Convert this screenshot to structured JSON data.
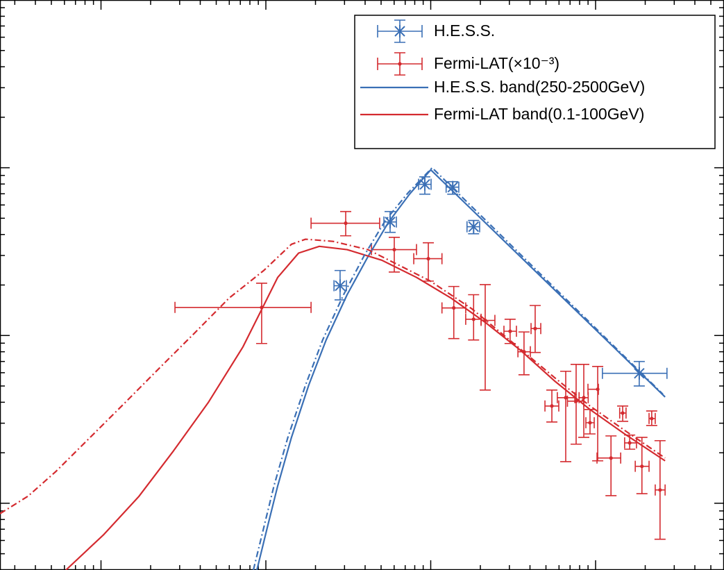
{
  "chart_data": {
    "type": "errorbar",
    "xscale": "log",
    "yscale": "log",
    "xlim": [
      0.0244,
      601
    ],
    "ylim": [
      0.004,
      10
    ],
    "xticks": [
      0.1,
      1,
      10,
      100
    ],
    "yticks": [
      0.01,
      0.1,
      1
    ],
    "legend": "upper right",
    "series": [
      {
        "name": "H.E.S.S.",
        "type": "errorbar",
        "color": "#3a6fb5",
        "marker": "x",
        "x": [
          2.82,
          5.67,
          9.21,
          13.6,
          18.2,
          184
        ],
        "y": [
          0.198,
          0.475,
          0.796,
          0.766,
          0.445,
          0.0595
        ],
        "x_low": [
          2.59,
          5.2,
          8.44,
          12.4,
          16.6,
          110
        ],
        "x_high": [
          3.08,
          6.19,
          10.05,
          14.8,
          19.8,
          271
        ],
        "y_low": [
          0.163,
          0.412,
          0.696,
          0.696,
          0.404,
          0.05
        ],
        "y_high": [
          0.244,
          0.548,
          0.883,
          0.826,
          0.485,
          0.07
        ]
      },
      {
        "name": "Fermi-LAT(×10⁻³)",
        "type": "errorbar",
        "color": "#d42a2f",
        "marker": "dot",
        "x": [
          0.943,
          3.05,
          6.01,
          9.67,
          13.8,
          18.2,
          21.4,
          30.3,
          36.8,
          43.0,
          54.3,
          65.9,
          76.2,
          84.8,
          92.5,
          103,
          124,
          146,
          161,
          191,
          219,
          246
        ],
        "y": [
          0.147,
          0.467,
          0.325,
          0.287,
          0.146,
          0.125,
          0.123,
          0.106,
          0.08,
          0.11,
          0.038,
          0.0426,
          0.0406,
          0.0426,
          0.0302,
          0.0478,
          0.0186,
          0.0345,
          0.0229,
          0.0166,
          0.032,
          0.012
        ],
        "x_low": [
          0.281,
          1.88,
          4.37,
          7.89,
          11.7,
          16.3,
          20.2,
          27.8,
          33.8,
          40.6,
          49.3,
          58.6,
          67.5,
          79.4,
          87.3,
          89.9,
          102,
          140,
          150,
          174,
          211,
          230
        ],
        "x_high": [
          1.88,
          4.9,
          8.2,
          11.7,
          16.3,
          20.2,
          24.5,
          33.1,
          40.2,
          46.5,
          59.8,
          74.8,
          84.8,
          90.2,
          98.1,
          104,
          142,
          153,
          177,
          211,
          230,
          264
        ],
        "y_low": [
          0.0896,
          0.393,
          0.239,
          0.211,
          0.0958,
          0.094,
          0.0473,
          0.0896,
          0.0583,
          0.0792,
          0.0305,
          0.0177,
          0.0225,
          0.0247,
          0.0259,
          0.0179,
          0.0111,
          0.0308,
          0.021,
          0.0114,
          0.0291,
          0.0061
        ],
        "y_high": [
          0.205,
          0.548,
          0.385,
          0.357,
          0.196,
          0.175,
          0.201,
          0.125,
          0.105,
          0.151,
          0.0473,
          0.0612,
          0.0673,
          0.0673,
          0.0362,
          0.0654,
          0.0252,
          0.038,
          0.0255,
          0.0247,
          0.0355,
          0.0236
        ]
      },
      {
        "name": "H.E.S.S. band(250-2500GeV)",
        "type": "line",
        "color": "#3a6fb5",
        "linestyle": "solid",
        "x": [
          0.882,
          1.02,
          1.18,
          1.43,
          1.82,
          2.32,
          3.11,
          4.16,
          5.56,
          7.44,
          10.0,
          264
        ],
        "y": [
          0.004,
          0.00716,
          0.0127,
          0.0247,
          0.0506,
          0.094,
          0.175,
          0.295,
          0.475,
          0.696,
          0.972,
          0.043
        ]
      },
      {
        "name": "Fermi-LAT band(0.1-100GeV)",
        "type": "line",
        "color": "#d42a2f",
        "linestyle": "solid",
        "x": [
          0.0613,
          0.104,
          0.17,
          0.275,
          0.447,
          0.726,
          1.18,
          1.58,
          2.11,
          3.11,
          5.05,
          8.2,
          13.3,
          21.6,
          35.1,
          57.0,
          92.5,
          150,
          264
        ],
        "y": [
          0.004,
          0.00651,
          0.011,
          0.0205,
          0.0398,
          0.0855,
          0.222,
          0.31,
          0.34,
          0.325,
          0.281,
          0.222,
          0.167,
          0.119,
          0.0815,
          0.0531,
          0.0362,
          0.0259,
          0.0179
        ]
      },
      {
        "type": "line",
        "color": "#3a6fb5",
        "linestyle": "dashdot",
        "x": [
          0.84,
          0.971,
          1.12,
          1.36,
          1.74,
          2.21,
          2.96,
          3.96,
          5.3,
          7.3,
          10.2,
          256
        ],
        "y": [
          0.004,
          0.00716,
          0.0127,
          0.0247,
          0.0506,
          0.094,
          0.175,
          0.301,
          0.484,
          0.71,
          1.0,
          0.0447
        ]
      },
      {
        "type": "line",
        "color": "#d42a2f",
        "linestyle": "dashdot",
        "x": [
          0.0244,
          0.036,
          0.053,
          0.086,
          0.14,
          0.227,
          0.368,
          0.598,
          0.971,
          1.43,
          1.74,
          2.56,
          4.16,
          6.75,
          9.95,
          17.8,
          31.9,
          57.0,
          92.5,
          150,
          264
        ],
        "y": [
          0.00867,
          0.011,
          0.0154,
          0.0247,
          0.0398,
          0.0642,
          0.103,
          0.167,
          0.244,
          0.35,
          0.375,
          0.364,
          0.325,
          0.256,
          0.211,
          0.144,
          0.0896,
          0.0556,
          0.038,
          0.0272,
          0.0186
        ]
      }
    ]
  }
}
